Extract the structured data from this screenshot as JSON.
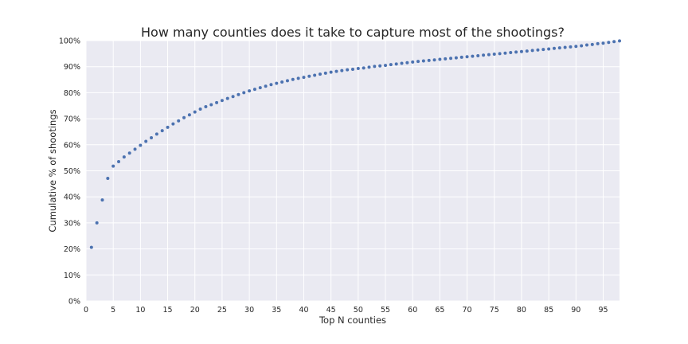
{
  "chart_data": {
    "type": "scatter",
    "title": "How many counties does it take to capture most of the shootings?",
    "xlabel": "Top N counties",
    "ylabel": "Cumulative % of shootings",
    "xlim": [
      0,
      98
    ],
    "ylim": [
      0,
      100
    ],
    "x_ticks": [
      "0",
      "5",
      "10",
      "15",
      "20",
      "25",
      "30",
      "35",
      "40",
      "45",
      "50",
      "55",
      "60",
      "65",
      "70",
      "75",
      "80",
      "85",
      "90",
      "95"
    ],
    "y_ticks": [
      "0%",
      "10%",
      "20%",
      "30%",
      "40%",
      "50%",
      "60%",
      "70%",
      "80%",
      "90%",
      "100%"
    ],
    "grid": true,
    "background": "#eaeaf2",
    "grid_color": "#ffffff",
    "marker_color": "#4c72b0",
    "x": [
      1,
      2,
      3,
      4,
      5,
      6,
      7,
      8,
      9,
      10,
      11,
      12,
      13,
      14,
      15,
      16,
      17,
      18,
      19,
      20,
      21,
      22,
      23,
      24,
      25,
      26,
      27,
      28,
      29,
      30,
      31,
      32,
      33,
      34,
      35,
      36,
      37,
      38,
      39,
      40,
      41,
      42,
      43,
      44,
      45,
      46,
      47,
      48,
      49,
      50,
      51,
      52,
      53,
      54,
      55,
      56,
      57,
      58,
      59,
      60,
      61,
      62,
      63,
      64,
      65,
      66,
      67,
      68,
      69,
      70,
      71,
      72,
      73,
      74,
      75,
      76,
      77,
      78,
      79,
      80,
      81,
      82,
      83,
      84,
      85,
      86,
      87,
      88,
      89,
      90,
      91,
      92,
      93,
      94,
      95,
      96,
      97,
      98
    ],
    "y": [
      20.6,
      30.0,
      38.8,
      47.1,
      51.8,
      53.5,
      55.3,
      56.8,
      58.3,
      59.8,
      61.3,
      62.7,
      64.1,
      65.4,
      66.7,
      68.0,
      69.2,
      70.4,
      71.5,
      72.6,
      73.7,
      74.6,
      75.4,
      76.2,
      77.0,
      77.8,
      78.5,
      79.3,
      80.0,
      80.7,
      81.3,
      81.9,
      82.5,
      83.1,
      83.6,
      84.1,
      84.6,
      85.1,
      85.5,
      85.9,
      86.3,
      86.7,
      87.1,
      87.5,
      87.9,
      88.2,
      88.5,
      88.8,
      89.0,
      89.3,
      89.5,
      89.8,
      90.1,
      90.3,
      90.5,
      90.8,
      91.0,
      91.3,
      91.5,
      91.8,
      92.0,
      92.2,
      92.4,
      92.6,
      92.8,
      93.0,
      93.2,
      93.4,
      93.6,
      93.8,
      94.0,
      94.2,
      94.4,
      94.6,
      94.8,
      95.0,
      95.2,
      95.4,
      95.6,
      95.8,
      96.0,
      96.2,
      96.4,
      96.6,
      96.8,
      97.0,
      97.2,
      97.4,
      97.6,
      97.8,
      98.0,
      98.3,
      98.5,
      98.8,
      99.0,
      99.3,
      99.6,
      99.9
    ]
  }
}
